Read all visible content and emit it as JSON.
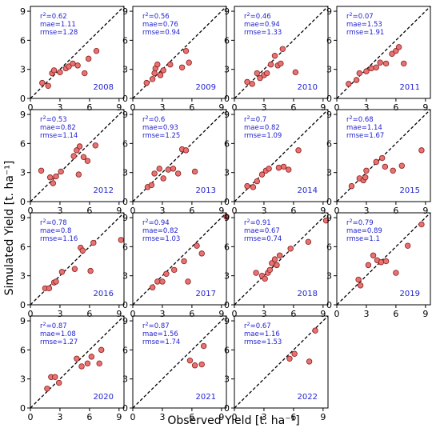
{
  "chart_data": {
    "type": "scatter",
    "xlabel": "Observed Yield [t. ha⁻¹]",
    "ylabel": "Simulated Yield [t. ha⁻¹]",
    "xlim": [
      0,
      9.5
    ],
    "ylim": [
      0,
      9.5
    ],
    "ticks": [
      0,
      3,
      6,
      9
    ],
    "reference_line": "1:1 dashed",
    "panels": [
      {
        "year": "2008",
        "r2": "0.62",
        "mae": "1.11",
        "rmse": "1.28",
        "points": [
          [
            1.2,
            1.6
          ],
          [
            1.8,
            1.3
          ],
          [
            2.2,
            2.6
          ],
          [
            2.4,
            2.9
          ],
          [
            3.0,
            2.7
          ],
          [
            3.6,
            3.1
          ],
          [
            3.9,
            3.3
          ],
          [
            4.3,
            3.6
          ],
          [
            4.8,
            3.4
          ],
          [
            5.5,
            2.6
          ],
          [
            5.9,
            4.1
          ],
          [
            6.7,
            4.9
          ]
        ]
      },
      {
        "year": "2009",
        "r2": "0.56",
        "mae": "0.76",
        "rmse": "0.94",
        "points": [
          [
            1.4,
            1.6
          ],
          [
            2.0,
            2.0
          ],
          [
            2.2,
            2.6
          ],
          [
            2.3,
            3.1
          ],
          [
            2.5,
            3.5
          ],
          [
            2.8,
            2.4
          ],
          [
            3.1,
            2.9
          ],
          [
            3.8,
            3.5
          ],
          [
            5.0,
            3.2
          ],
          [
            5.4,
            4.9
          ],
          [
            5.7,
            3.7
          ]
        ]
      },
      {
        "year": "2010",
        "r2": "0.46",
        "mae": "0.94",
        "rmse": "1.33",
        "points": [
          [
            1.3,
            1.7
          ],
          [
            1.8,
            1.5
          ],
          [
            2.3,
            2.6
          ],
          [
            2.6,
            2.1
          ],
          [
            3.0,
            2.4
          ],
          [
            3.3,
            2.6
          ],
          [
            3.7,
            3.5
          ],
          [
            4.1,
            4.4
          ],
          [
            4.4,
            3.4
          ],
          [
            4.7,
            3.6
          ],
          [
            4.9,
            5.1
          ],
          [
            6.2,
            2.7
          ]
        ]
      },
      {
        "year": "2011",
        "r2": "0.07",
        "mae": "1.53",
        "rmse": "1.91",
        "points": [
          [
            1.2,
            1.5
          ],
          [
            2.0,
            1.9
          ],
          [
            2.3,
            2.6
          ],
          [
            3.0,
            2.8
          ],
          [
            3.5,
            3.1
          ],
          [
            4.0,
            3.2
          ],
          [
            4.4,
            3.7
          ],
          [
            5.0,
            3.6
          ],
          [
            5.6,
            4.6
          ],
          [
            6.0,
            4.9
          ],
          [
            6.3,
            5.3
          ],
          [
            6.8,
            3.6
          ]
        ]
      },
      {
        "year": "2012",
        "r2": "0.53",
        "mae": "0.82",
        "rmse": "1.14",
        "points": [
          [
            1.1,
            3.2
          ],
          [
            2.0,
            2.5
          ],
          [
            2.3,
            1.9
          ],
          [
            2.6,
            2.6
          ],
          [
            3.1,
            3.1
          ],
          [
            4.4,
            4.7
          ],
          [
            4.7,
            5.3
          ],
          [
            4.9,
            2.8
          ],
          [
            5.0,
            5.7
          ],
          [
            5.4,
            4.6
          ],
          [
            5.8,
            4.2
          ],
          [
            6.6,
            5.8
          ]
        ]
      },
      {
        "year": "2013",
        "r2": "0.6",
        "mae": "0.93",
        "rmse": "1.25",
        "points": [
          [
            1.5,
            1.5
          ],
          [
            1.9,
            1.7
          ],
          [
            2.2,
            2.9
          ],
          [
            2.7,
            3.4
          ],
          [
            3.1,
            2.4
          ],
          [
            3.6,
            3.3
          ],
          [
            4.1,
            3.4
          ],
          [
            4.6,
            2.9
          ],
          [
            5.0,
            5.4
          ],
          [
            5.4,
            5.3
          ],
          [
            6.3,
            3.1
          ]
        ]
      },
      {
        "year": "2014",
        "r2": "0.7",
        "mae": "0.82",
        "rmse": "1.09",
        "points": [
          [
            1.3,
            1.6
          ],
          [
            1.9,
            1.5
          ],
          [
            2.3,
            2.1
          ],
          [
            2.8,
            2.8
          ],
          [
            3.2,
            3.2
          ],
          [
            3.5,
            3.4
          ],
          [
            4.5,
            3.5
          ],
          [
            5.0,
            3.6
          ],
          [
            5.5,
            3.3
          ],
          [
            6.5,
            5.3
          ]
        ]
      },
      {
        "year": "2015",
        "r2": "0.68",
        "mae": "1.14",
        "rmse": "1.67",
        "points": [
          [
            1.5,
            1.6
          ],
          [
            2.3,
            2.4
          ],
          [
            2.7,
            2.2
          ],
          [
            2.9,
            2.5
          ],
          [
            3.0,
            3.2
          ],
          [
            4.0,
            4.1
          ],
          [
            4.6,
            4.5
          ],
          [
            4.9,
            3.6
          ],
          [
            5.7,
            3.2
          ],
          [
            6.6,
            3.7
          ],
          [
            8.6,
            5.3
          ]
        ]
      },
      {
        "year": "2016",
        "r2": "0.78",
        "mae": "0.8",
        "rmse": "1.16",
        "points": [
          [
            1.5,
            1.7
          ],
          [
            1.9,
            1.7
          ],
          [
            2.4,
            2.3
          ],
          [
            2.6,
            2.4
          ],
          [
            3.2,
            3.4
          ],
          [
            4.5,
            3.7
          ],
          [
            5.1,
            5.9
          ],
          [
            5.3,
            5.6
          ],
          [
            6.1,
            3.5
          ],
          [
            6.4,
            6.4
          ],
          [
            9.2,
            6.7
          ]
        ]
      },
      {
        "year": "2017",
        "r2": "0.94",
        "mae": "0.82",
        "rmse": "1.03",
        "points": [
          [
            2.0,
            1.8
          ],
          [
            2.5,
            2.4
          ],
          [
            3.0,
            2.4
          ],
          [
            3.4,
            3.2
          ],
          [
            4.2,
            3.6
          ],
          [
            5.2,
            4.5
          ],
          [
            5.6,
            2.4
          ],
          [
            6.5,
            6.1
          ],
          [
            7.0,
            5.3
          ],
          [
            9.5,
            9.1
          ]
        ]
      },
      {
        "year": "2018",
        "r2": "0.91",
        "mae": "0.67",
        "rmse": "0.74",
        "points": [
          [
            2.2,
            3.3
          ],
          [
            2.8,
            3.0
          ],
          [
            3.1,
            2.7
          ],
          [
            3.4,
            3.3
          ],
          [
            3.6,
            3.6
          ],
          [
            3.8,
            4.3
          ],
          [
            4.1,
            4.7
          ],
          [
            4.3,
            4.1
          ],
          [
            4.6,
            5.1
          ],
          [
            5.7,
            5.8
          ],
          [
            7.5,
            6.5
          ],
          [
            9.3,
            8.7
          ]
        ]
      },
      {
        "year": "2019",
        "r2": "0.79",
        "mae": "0.89",
        "rmse": "1.1",
        "points": [
          [
            2.2,
            2.6
          ],
          [
            2.4,
            2.0
          ],
          [
            3.2,
            4.1
          ],
          [
            3.7,
            5.1
          ],
          [
            4.1,
            4.6
          ],
          [
            4.5,
            4.4
          ],
          [
            5.0,
            4.5
          ],
          [
            6.0,
            3.3
          ],
          [
            7.2,
            6.1
          ],
          [
            8.6,
            8.3
          ]
        ]
      },
      {
        "year": "2020",
        "r2": "0.87",
        "mae": "1.08",
        "rmse": "1.27",
        "points": [
          [
            1.7,
            2.0
          ],
          [
            2.1,
            3.2
          ],
          [
            2.5,
            3.2
          ],
          [
            2.9,
            2.6
          ],
          [
            4.7,
            5.1
          ],
          [
            5.2,
            4.3
          ],
          [
            5.8,
            4.6
          ],
          [
            6.2,
            5.3
          ],
          [
            7.0,
            4.6
          ],
          [
            7.2,
            6.0
          ]
        ]
      },
      {
        "year": "2021",
        "r2": "0.87",
        "mae": "1.56",
        "rmse": "1.74",
        "points": [
          [
            5.8,
            4.9
          ],
          [
            6.3,
            4.4
          ],
          [
            7.0,
            4.5
          ],
          [
            7.2,
            6.4
          ]
        ]
      },
      {
        "year": "2022",
        "r2": "0.67",
        "mae": "1.16",
        "rmse": "1.53",
        "points": [
          [
            5.6,
            5.1
          ],
          [
            6.1,
            5.6
          ],
          [
            7.6,
            4.8
          ],
          [
            8.2,
            8.0
          ]
        ]
      }
    ]
  }
}
